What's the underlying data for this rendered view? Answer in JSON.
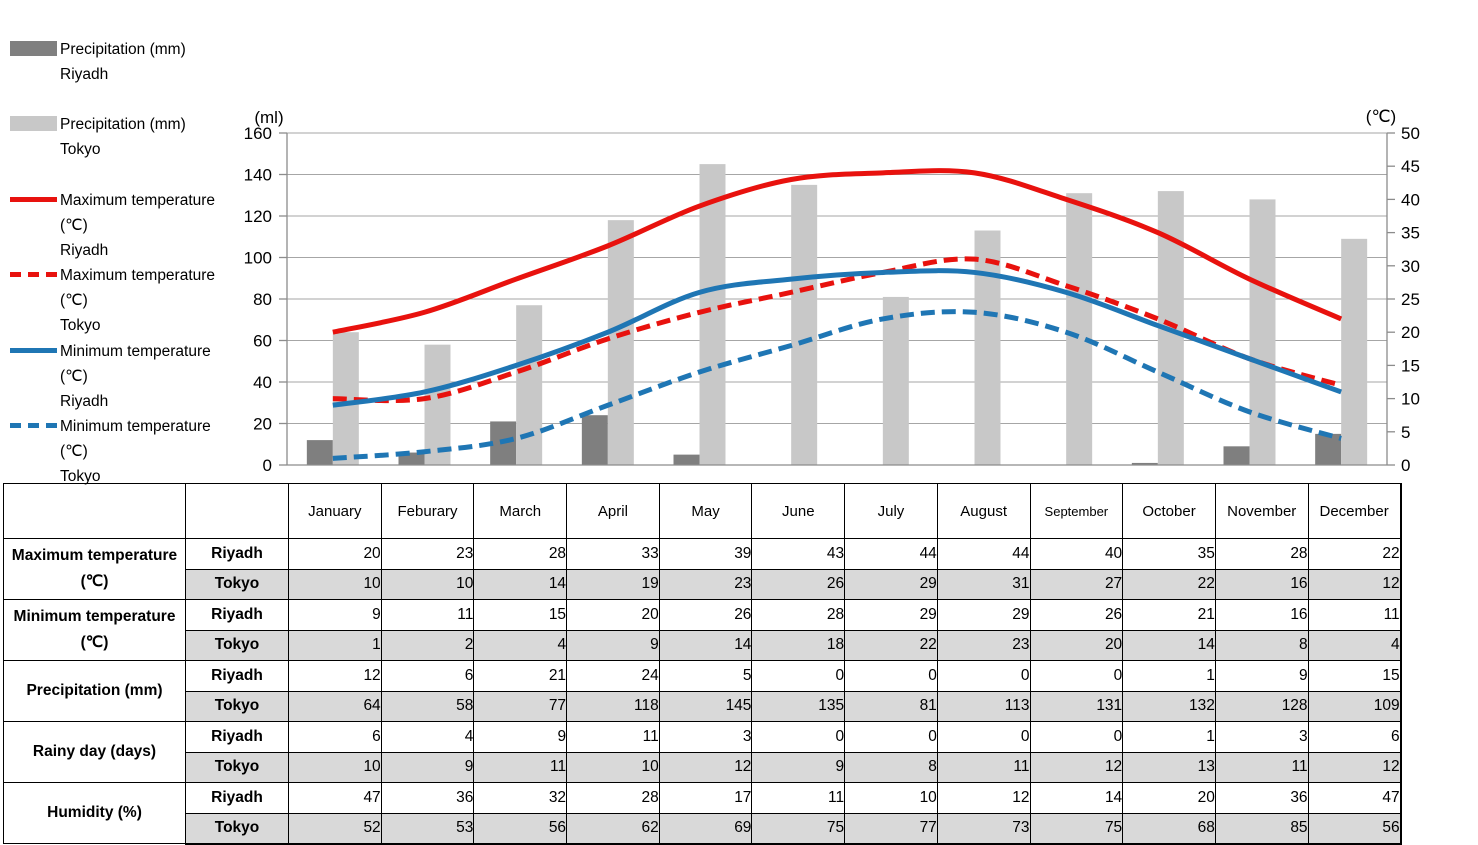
{
  "colors": {
    "precip_riyadh_bar": "#7f7f7f",
    "precip_tokyo_bar": "#c8c8c8",
    "max_temp_line": "#e8120e",
    "min_temp_line": "#1f76b4",
    "tokyo_row_bg": "#d9d9d9",
    "gridline": "#a6a6a6",
    "axis_line": "#8c8c8c",
    "table_border": "#000000"
  },
  "legend": {
    "items": [
      {
        "series": "precip-riyadh",
        "label": "Precipitation (mm)",
        "city": "Riyadh",
        "swatch": "bar",
        "color": "#7f7f7f"
      },
      {
        "series": "precip-tokyo",
        "label": "Precipitation (mm)",
        "city": "Tokyo",
        "swatch": "bar",
        "color": "#c8c8c8"
      },
      {
        "series": "max-temp-riyadh",
        "label": "Maximum temperature (℃)",
        "city": "Riyadh",
        "swatch": "line-solid",
        "color": "#e8120e"
      },
      {
        "series": "max-temp-tokyo",
        "label": "Maximum temperature (℃)",
        "city": "Tokyo",
        "swatch": "line-dashed",
        "color": "#e8120e"
      },
      {
        "series": "min-temp-riyadh",
        "label": "Minimum temperature (℃)",
        "city": "Riyadh",
        "swatch": "line-solid",
        "color": "#1f76b4"
      },
      {
        "series": "min-temp-tokyo",
        "label": "Minimum temperature (℃)",
        "city": "Tokyo",
        "swatch": "line-dashed",
        "color": "#1f76b4"
      }
    ]
  },
  "chart_data": {
    "type": "combo-bar-line",
    "categories": [
      "January",
      "Feburary",
      "March",
      "April",
      "May",
      "June",
      "July",
      "August",
      "September",
      "October",
      "November",
      "December"
    ],
    "left_axis": {
      "title": "(ml)",
      "min": 0,
      "max": 160,
      "step": 20
    },
    "right_axis": {
      "title": "(℃)",
      "min": 0,
      "max": 50,
      "step": 5
    },
    "grid": true,
    "legend_position": "left",
    "bar_series": [
      {
        "name": "Precipitation (mm) Riyadh",
        "axis": "left",
        "color": "#7f7f7f",
        "values": [
          12,
          6,
          21,
          24,
          5,
          0,
          0,
          0,
          0,
          1,
          9,
          15
        ]
      },
      {
        "name": "Precipitation (mm) Tokyo",
        "axis": "left",
        "color": "#c8c8c8",
        "values": [
          64,
          58,
          77,
          118,
          145,
          135,
          81,
          113,
          131,
          132,
          128,
          109
        ]
      }
    ],
    "line_series": [
      {
        "name": "Maximum temperature (℃) Riyadh",
        "axis": "right",
        "color": "#e8120e",
        "dashed": false,
        "values": [
          20,
          23,
          28,
          33,
          39,
          43,
          44,
          44,
          40,
          35,
          28,
          22
        ]
      },
      {
        "name": "Maximum temperature (℃) Tokyo",
        "axis": "right",
        "color": "#e8120e",
        "dashed": true,
        "values": [
          10,
          10,
          14,
          19,
          23,
          26,
          29,
          31,
          27,
          22,
          16,
          12
        ]
      },
      {
        "name": "Minimum temperature (℃) Riyadh",
        "axis": "right",
        "color": "#1f76b4",
        "dashed": false,
        "values": [
          9,
          11,
          15,
          20,
          26,
          28,
          29,
          29,
          26,
          21,
          16,
          11
        ]
      },
      {
        "name": "Minimum temperature (℃) Tokyo",
        "axis": "right",
        "color": "#1f76b4",
        "dashed": true,
        "values": [
          1,
          2,
          4,
          9,
          14,
          18,
          22,
          23,
          20,
          14,
          8,
          4
        ]
      }
    ]
  },
  "table": {
    "month_headers": [
      "January",
      "Feburary",
      "March",
      "April",
      "May",
      "June",
      "July",
      "August",
      "September",
      "October",
      "November",
      "December"
    ],
    "row_groups": [
      {
        "label": "Maximum temperature (℃)",
        "rows": [
          {
            "city": "Riyadh",
            "values": [
              20,
              23,
              28,
              33,
              39,
              43,
              44,
              44,
              40,
              35,
              28,
              22
            ]
          },
          {
            "city": "Tokyo",
            "values": [
              10,
              10,
              14,
              19,
              23,
              26,
              29,
              31,
              27,
              22,
              16,
              12
            ]
          }
        ]
      },
      {
        "label": "Minimum temperature (℃)",
        "rows": [
          {
            "city": "Riyadh",
            "values": [
              9,
              11,
              15,
              20,
              26,
              28,
              29,
              29,
              26,
              21,
              16,
              11
            ]
          },
          {
            "city": "Tokyo",
            "values": [
              1,
              2,
              4,
              9,
              14,
              18,
              22,
              23,
              20,
              14,
              8,
              4
            ]
          }
        ]
      },
      {
        "label": "Precipitation (mm)",
        "rows": [
          {
            "city": "Riyadh",
            "values": [
              12,
              6,
              21,
              24,
              5,
              0,
              0,
              0,
              0,
              1,
              9,
              15
            ]
          },
          {
            "city": "Tokyo",
            "values": [
              64,
              58,
              77,
              118,
              145,
              135,
              81,
              113,
              131,
              132,
              128,
              109
            ]
          }
        ]
      },
      {
        "label": "Rainy day (days)",
        "rows": [
          {
            "city": "Riyadh",
            "values": [
              6,
              4,
              9,
              11,
              3,
              0,
              0,
              0,
              0,
              1,
              3,
              6
            ]
          },
          {
            "city": "Tokyo",
            "values": [
              10,
              9,
              11,
              10,
              12,
              9,
              8,
              11,
              12,
              13,
              11,
              12
            ]
          }
        ]
      },
      {
        "label": "Humidity (%)",
        "rows": [
          {
            "city": "Riyadh",
            "values": [
              47,
              36,
              32,
              28,
              17,
              11,
              10,
              12,
              14,
              20,
              36,
              47
            ]
          },
          {
            "city": "Tokyo",
            "values": [
              52,
              53,
              56,
              62,
              69,
              75,
              77,
              73,
              75,
              68,
              85,
              56
            ]
          }
        ]
      }
    ]
  }
}
